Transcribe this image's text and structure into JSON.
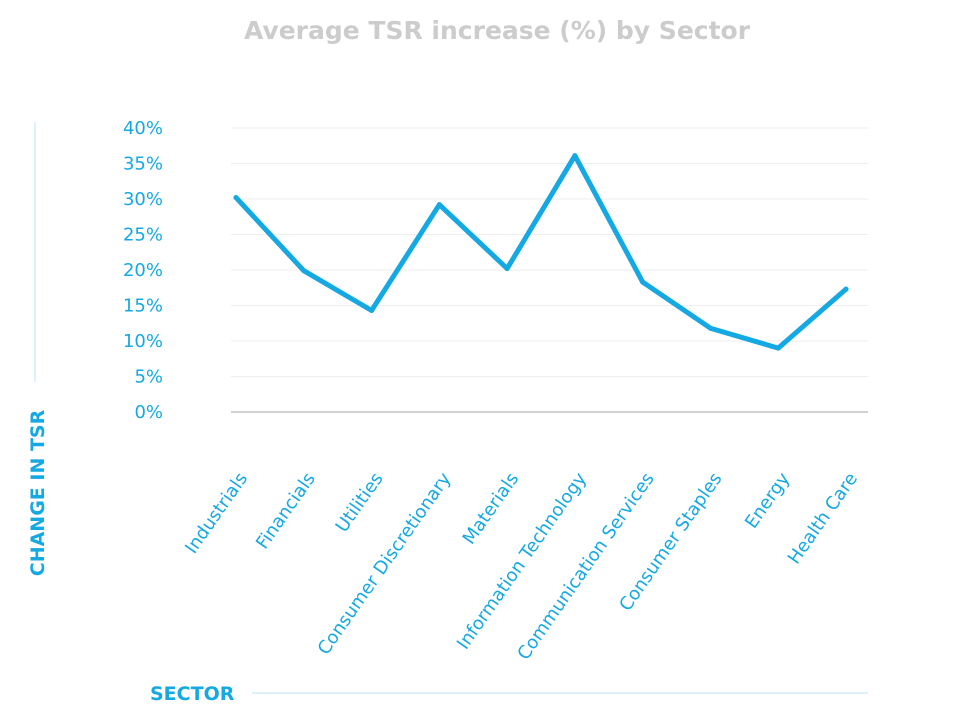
{
  "chart_data": {
    "type": "line",
    "title": "Average TSR increase (%) by Sector",
    "xlabel": "SECTOR",
    "ylabel": "CHANGE IN TSR",
    "categories": [
      "Industrials",
      "Financials",
      "Utilities",
      "Consumer Discretionary",
      "Materials",
      "Information Technology",
      "Communication Services",
      "Consumer Staples",
      "Energy",
      "Health Care"
    ],
    "series": [
      {
        "values": [
          30.2,
          19.9,
          14.3,
          29.2,
          20.2,
          36.1,
          18.3,
          11.8,
          9.0,
          17.3
        ]
      }
    ],
    "ylim": [
      0,
      40
    ],
    "yticks": [
      "0%",
      "5%",
      "10%",
      "15%",
      "20%",
      "25%",
      "30%",
      "35%",
      "40%"
    ],
    "grid": true,
    "legend": "none",
    "colors": {
      "line": "#14a9e2",
      "grid": "#eeeeee",
      "text": "#14a9e2",
      "title": "#cccccc",
      "axis": "#c4c4c4"
    }
  }
}
